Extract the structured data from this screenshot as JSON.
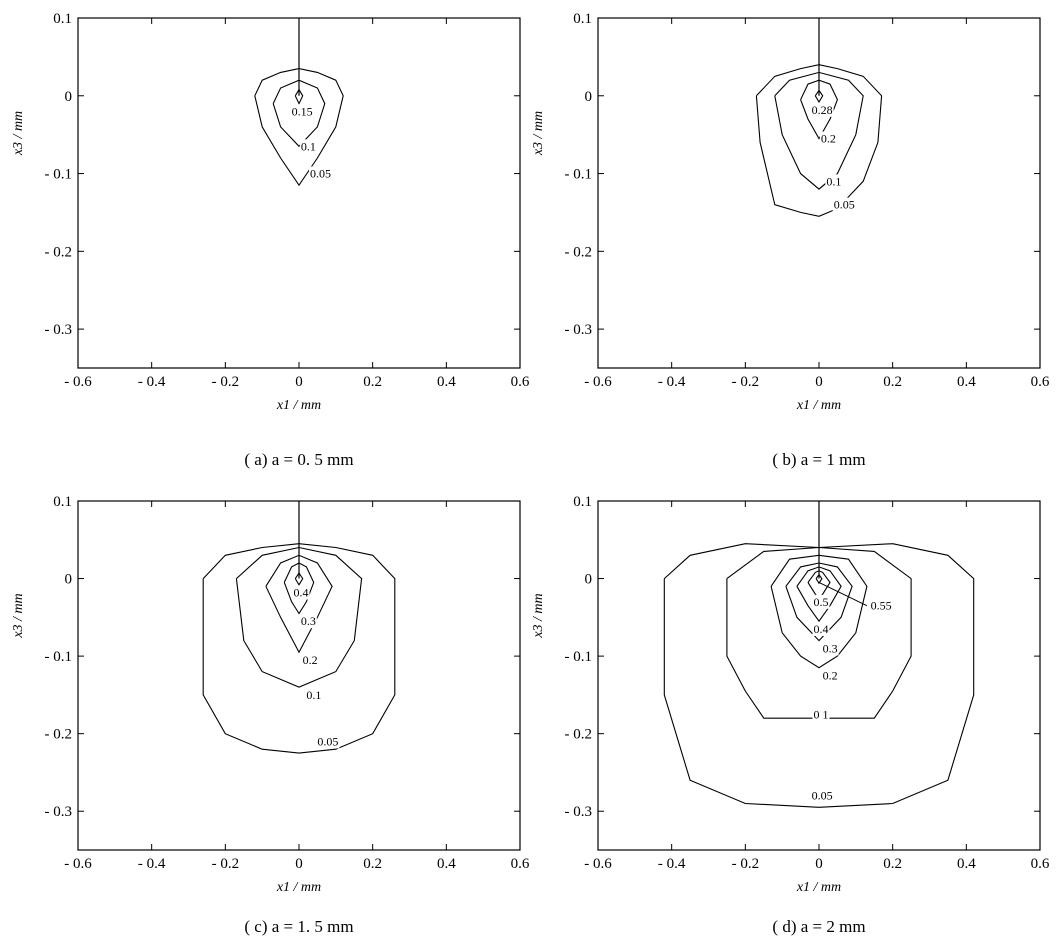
{
  "chart_data": [
    {
      "type": "line",
      "caption": "( a)  a =  0. 5 mm",
      "xlabel": "x1 / mm",
      "ylabel": "x3 / mm",
      "xlim": [
        -0.6,
        0.6
      ],
      "ylim": [
        -0.35,
        0.1
      ],
      "xticks": [
        "- 0.6",
        "- 0.4",
        "- 0.2",
        "0",
        "0.2",
        "0.4",
        "0.6"
      ],
      "yticks": [
        "0.1",
        "0",
        "- 0.1",
        "- 0.2",
        "- 0.3"
      ],
      "crack": {
        "x": 0,
        "y_top": 0.1,
        "y_tip": 0
      },
      "series": [
        {
          "name": "0.05",
          "label_at": [
            0.03,
            -0.1
          ],
          "points": [
            [
              -0.12,
              0.0
            ],
            [
              -0.1,
              0.02
            ],
            [
              -0.05,
              0.03
            ],
            [
              0,
              0.035
            ],
            [
              0.05,
              0.03
            ],
            [
              0.1,
              0.02
            ],
            [
              0.12,
              0.0
            ],
            [
              0.1,
              -0.04
            ],
            [
              0.05,
              -0.08
            ],
            [
              0,
              -0.115
            ],
            [
              -0.05,
              -0.08
            ],
            [
              -0.1,
              -0.04
            ],
            [
              -0.12,
              0.0
            ]
          ]
        },
        {
          "name": "0.1",
          "label_at": [
            0.005,
            -0.065
          ],
          "points": [
            [
              -0.07,
              -0.01
            ],
            [
              -0.05,
              0.01
            ],
            [
              0,
              0.02
            ],
            [
              0.05,
              0.01
            ],
            [
              0.07,
              -0.01
            ],
            [
              0.05,
              -0.04
            ],
            [
              0,
              -0.065
            ],
            [
              -0.05,
              -0.04
            ],
            [
              -0.07,
              -0.01
            ]
          ]
        },
        {
          "name": "0.15",
          "label_at": [
            -0.02,
            -0.02
          ],
          "points": [
            [
              -0.01,
              0.0
            ],
            [
              0,
              0.008
            ],
            [
              0.01,
              0.0
            ],
            [
              0,
              -0.01
            ],
            [
              -0.01,
              0.0
            ]
          ]
        }
      ]
    },
    {
      "type": "line",
      "caption": "( b)  a =  1 mm",
      "xlabel": "x1 / mm",
      "ylabel": "x3 / mm",
      "xlim": [
        -0.6,
        0.6
      ],
      "ylim": [
        -0.35,
        0.1
      ],
      "xticks": [
        "- 0.6",
        "- 0.4",
        "- 0.2",
        "0",
        "0.2",
        "0.4",
        "0.6"
      ],
      "yticks": [
        "0.1",
        "0",
        "- 0.1",
        "- 0.2",
        "- 0.3"
      ],
      "crack": {
        "x": 0,
        "y_top": 0.1,
        "y_tip": 0
      },
      "series": [
        {
          "name": "0.05",
          "label_at": [
            0.04,
            -0.14
          ],
          "points": [
            [
              -0.17,
              0.0
            ],
            [
              -0.12,
              0.025
            ],
            [
              -0.05,
              0.035
            ],
            [
              0,
              0.04
            ],
            [
              0.05,
              0.035
            ],
            [
              0.12,
              0.025
            ],
            [
              0.17,
              0.0
            ],
            [
              0.16,
              -0.06
            ],
            [
              0.12,
              -0.11
            ],
            [
              0.05,
              -0.145
            ],
            [
              0,
              -0.155
            ],
            [
              -0.05,
              -0.15
            ],
            [
              -0.12,
              -0.14
            ],
            [
              -0.16,
              -0.06
            ],
            [
              -0.17,
              0.0
            ]
          ]
        },
        {
          "name": "0.1",
          "label_at": [
            0.02,
            -0.11
          ],
          "points": [
            [
              -0.12,
              0.0
            ],
            [
              -0.08,
              0.02
            ],
            [
              0,
              0.03
            ],
            [
              0.08,
              0.02
            ],
            [
              0.12,
              0.0
            ],
            [
              0.1,
              -0.05
            ],
            [
              0.05,
              -0.1
            ],
            [
              0,
              -0.12
            ],
            [
              -0.05,
              -0.1
            ],
            [
              -0.1,
              -0.05
            ],
            [
              -0.12,
              0.0
            ]
          ]
        },
        {
          "name": "0.2",
          "label_at": [
            0.005,
            -0.055
          ],
          "points": [
            [
              -0.05,
              -0.005
            ],
            [
              -0.03,
              0.015
            ],
            [
              0,
              0.02
            ],
            [
              0.03,
              0.015
            ],
            [
              0.05,
              -0.005
            ],
            [
              0.03,
              -0.03
            ],
            [
              0,
              -0.055
            ],
            [
              -0.03,
              -0.03
            ],
            [
              -0.05,
              -0.005
            ]
          ]
        },
        {
          "name": "0.28",
          "label_at": [
            -0.02,
            -0.018
          ],
          "points": [
            [
              -0.01,
              0.0
            ],
            [
              0,
              0.007
            ],
            [
              0.01,
              0.0
            ],
            [
              0,
              -0.008
            ],
            [
              -0.01,
              0.0
            ]
          ]
        }
      ]
    },
    {
      "type": "line",
      "caption": "( c)  a =  1. 5 mm",
      "xlabel": "x1 / mm",
      "ylabel": "x3 / mm",
      "xlim": [
        -0.6,
        0.6
      ],
      "ylim": [
        -0.35,
        0.1
      ],
      "xticks": [
        "- 0.6",
        "- 0.4",
        "- 0.2",
        "0",
        "0.2",
        "0.4",
        "0.6"
      ],
      "yticks": [
        "0.1",
        "0",
        "- 0.1",
        "- 0.2",
        "- 0.3"
      ],
      "crack": {
        "x": 0,
        "y_top": 0.1,
        "y_tip": 0
      },
      "series": [
        {
          "name": "0.05",
          "label_at": [
            0.05,
            -0.21
          ],
          "points": [
            [
              -0.26,
              0.0
            ],
            [
              -0.2,
              0.03
            ],
            [
              -0.1,
              0.04
            ],
            [
              0,
              0.045
            ],
            [
              0.1,
              0.04
            ],
            [
              0.2,
              0.03
            ],
            [
              0.26,
              0.0
            ],
            [
              0.26,
              -0.15
            ],
            [
              0.2,
              -0.2
            ],
            [
              0.1,
              -0.22
            ],
            [
              0,
              -0.225
            ],
            [
              -0.1,
              -0.22
            ],
            [
              -0.2,
              -0.2
            ],
            [
              -0.26,
              -0.15
            ],
            [
              -0.26,
              0.0
            ]
          ]
        },
        {
          "name": "0.1",
          "label_at": [
            0.02,
            -0.15
          ],
          "points": [
            [
              -0.17,
              0.0
            ],
            [
              -0.1,
              0.03
            ],
            [
              0,
              0.04
            ],
            [
              0.1,
              0.03
            ],
            [
              0.17,
              0.0
            ],
            [
              0.15,
              -0.08
            ],
            [
              0.1,
              -0.12
            ],
            [
              0,
              -0.14
            ],
            [
              -0.1,
              -0.12
            ],
            [
              -0.15,
              -0.08
            ],
            [
              -0.17,
              0.0
            ]
          ]
        },
        {
          "name": "0.2",
          "label_at": [
            0.01,
            -0.105
          ],
          "points": [
            [
              -0.09,
              -0.01
            ],
            [
              -0.05,
              0.02
            ],
            [
              0,
              0.03
            ],
            [
              0.05,
              0.02
            ],
            [
              0.09,
              -0.01
            ],
            [
              0.05,
              -0.05
            ],
            [
              0,
              -0.095
            ],
            [
              -0.05,
              -0.05
            ],
            [
              -0.09,
              -0.01
            ]
          ]
        },
        {
          "name": "0.3",
          "label_at": [
            0.005,
            -0.055
          ],
          "points": [
            [
              -0.04,
              -0.005
            ],
            [
              -0.02,
              0.015
            ],
            [
              0,
              0.02
            ],
            [
              0.02,
              0.015
            ],
            [
              0.04,
              -0.005
            ],
            [
              0.02,
              -0.03
            ],
            [
              0,
              -0.045
            ],
            [
              -0.02,
              -0.03
            ],
            [
              -0.04,
              -0.005
            ]
          ]
        },
        {
          "name": "0.4",
          "label_at": [
            -0.015,
            -0.018
          ],
          "points": [
            [
              -0.01,
              0.0
            ],
            [
              0,
              0.007
            ],
            [
              0.01,
              0.0
            ],
            [
              0,
              -0.008
            ],
            [
              -0.01,
              0.0
            ]
          ]
        }
      ]
    },
    {
      "type": "line",
      "caption": "( d)  a =  2 mm",
      "xlabel": "x1 / mm",
      "ylabel": "x3 / mm",
      "xlim": [
        -0.6,
        0.6
      ],
      "ylim": [
        -0.35,
        0.1
      ],
      "xticks": [
        "- 0.6",
        "- 0.4",
        "- 0.2",
        "0",
        "0.2",
        "0.4",
        "0.6"
      ],
      "yticks": [
        "0.1",
        "0",
        "- 0.1",
        "- 0.2",
        "- 0.3"
      ],
      "crack": {
        "x": 0,
        "y_top": 0.1,
        "y_tip": 0
      },
      "series": [
        {
          "name": "0.05",
          "label_at": [
            -0.02,
            -0.28
          ],
          "points": [
            [
              -0.42,
              0.0
            ],
            [
              -0.35,
              0.03
            ],
            [
              -0.2,
              0.045
            ],
            [
              0,
              0.04
            ],
            [
              0.2,
              0.045
            ],
            [
              0.35,
              0.03
            ],
            [
              0.42,
              0.0
            ],
            [
              0.42,
              -0.15
            ],
            [
              0.35,
              -0.26
            ],
            [
              0.2,
              -0.29
            ],
            [
              0,
              -0.295
            ],
            [
              -0.2,
              -0.29
            ],
            [
              -0.35,
              -0.26
            ],
            [
              -0.42,
              -0.15
            ],
            [
              -0.42,
              0.0
            ]
          ]
        },
        {
          "name": "0 1",
          "label_at": [
            -0.015,
            -0.175
          ],
          "points": [
            [
              -0.25,
              0.0
            ],
            [
              -0.15,
              0.035
            ],
            [
              0,
              0.04
            ],
            [
              0.15,
              0.035
            ],
            [
              0.25,
              0.0
            ],
            [
              0.25,
              -0.1
            ],
            [
              0.2,
              -0.145
            ],
            [
              0.15,
              -0.18
            ],
            [
              0,
              -0.18
            ],
            [
              -0.15,
              -0.18
            ],
            [
              -0.2,
              -0.145
            ],
            [
              -0.25,
              -0.1
            ],
            [
              -0.25,
              0.0
            ]
          ]
        },
        {
          "name": "0.2",
          "label_at": [
            0.01,
            -0.125
          ],
          "points": [
            [
              -0.13,
              -0.01
            ],
            [
              -0.08,
              0.025
            ],
            [
              0,
              0.03
            ],
            [
              0.08,
              0.025
            ],
            [
              0.13,
              -0.01
            ],
            [
              0.1,
              -0.07
            ],
            [
              0.05,
              -0.1
            ],
            [
              0,
              -0.115
            ],
            [
              -0.05,
              -0.1
            ],
            [
              -0.1,
              -0.07
            ],
            [
              -0.13,
              -0.01
            ]
          ]
        },
        {
          "name": "0.3",
          "label_at": [
            0.01,
            -0.09
          ],
          "points": [
            [
              -0.09,
              -0.01
            ],
            [
              -0.05,
              0.015
            ],
            [
              0,
              0.02
            ],
            [
              0.05,
              0.015
            ],
            [
              0.09,
              -0.01
            ],
            [
              0.06,
              -0.05
            ],
            [
              0,
              -0.08
            ],
            [
              -0.06,
              -0.05
            ],
            [
              -0.09,
              -0.01
            ]
          ]
        },
        {
          "name": "0.4",
          "label_at": [
            -0.015,
            -0.065
          ],
          "points": [
            [
              -0.06,
              -0.01
            ],
            [
              -0.03,
              0.01
            ],
            [
              0,
              0.015
            ],
            [
              0.03,
              0.01
            ],
            [
              0.06,
              -0.01
            ],
            [
              0.03,
              -0.035
            ],
            [
              0,
              -0.055
            ],
            [
              -0.03,
              -0.035
            ],
            [
              -0.06,
              -0.01
            ]
          ]
        },
        {
          "name": "0.5",
          "label_at": [
            -0.015,
            -0.03
          ],
          "points": [
            [
              -0.03,
              -0.005
            ],
            [
              -0.01,
              0.008
            ],
            [
              0,
              0.01
            ],
            [
              0.01,
              0.008
            ],
            [
              0.03,
              -0.005
            ],
            [
              0.01,
              -0.02
            ],
            [
              0,
              -0.025
            ],
            [
              -0.01,
              -0.02
            ],
            [
              -0.03,
              -0.005
            ]
          ]
        },
        {
          "name": "0.55",
          "label_at": [
            0.14,
            -0.035
          ],
          "leader": [
            [
              0.0,
              -0.005
            ],
            [
              0.13,
              -0.035
            ]
          ],
          "points": [
            [
              -0.008,
              0.0
            ],
            [
              0,
              0.005
            ],
            [
              0.008,
              0.0
            ],
            [
              0,
              -0.006
            ],
            [
              -0.008,
              0.0
            ]
          ]
        }
      ]
    }
  ]
}
